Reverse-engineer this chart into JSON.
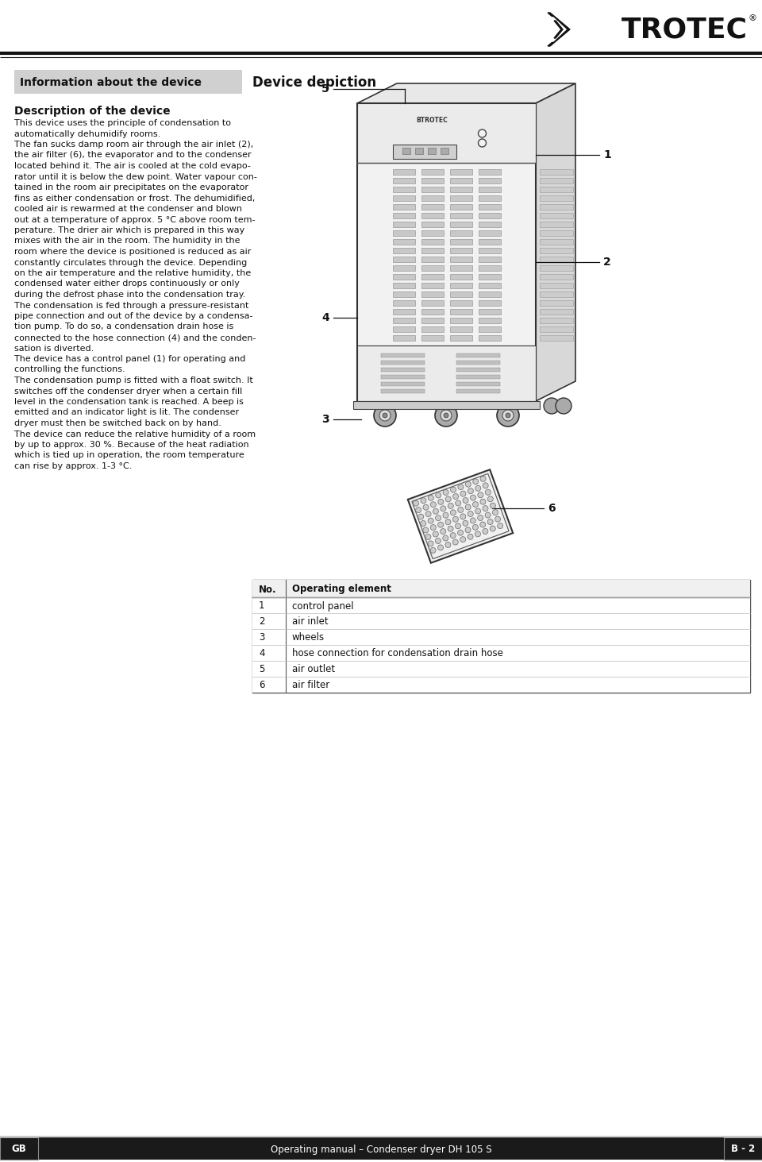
{
  "page_bg": "#ffffff",
  "info_box_bg": "#d0d0d0",
  "info_box_title": "Information about the device",
  "section_title": "Description of the device",
  "body_lines": [
    "This device uses the principle of condensation to",
    "automatically dehumidify rooms.",
    "The fan sucks damp room air through the air inlet (2),",
    "the air filter (6), the evaporator and to the condenser",
    "located behind it. The air is cooled at the cold evapo-",
    "rator until it is below the dew point. Water vapour con-",
    "tained in the room air precipitates on the evaporator",
    "fins as either condensation or frost. The dehumidified,",
    "cooled air is rewarmed at the condenser and blown",
    "out at a temperature of approx. 5 °C above room tem-",
    "perature. The drier air which is prepared in this way",
    "mixes with the air in the room. The humidity in the",
    "room where the device is positioned is reduced as air",
    "constantly circulates through the device. Depending",
    "on the air temperature and the relative humidity, the",
    "condensed water either drops continuously or only",
    "during the defrost phase into the condensation tray.",
    "The condensation is fed through a pressure-resistant",
    "pipe connection and out of the device by a condensa-",
    "tion pump. To do so, a condensation drain hose is",
    "connected to the hose connection (4) and the conden-",
    "sation is diverted.",
    "The device has a control panel (1) for operating and",
    "controlling the functions.",
    "The condensation pump is fitted with a float switch. It",
    "switches off the condenser dryer when a certain fill",
    "level in the condensation tank is reached. A beep is",
    "emitted and an indicator light is lit. The condenser",
    "dryer must then be switched back on by hand.",
    "The device can reduce the relative humidity of a room",
    "by up to approx. 30 %. Because of the heat radiation",
    "which is tied up in operation, the room temperature",
    "can rise by approx. 1-3 °C."
  ],
  "device_depiction_title": "Device depiction",
  "table_headers": [
    "No.",
    "Operating element"
  ],
  "table_rows": [
    [
      "1",
      "control panel"
    ],
    [
      "2",
      "air inlet"
    ],
    [
      "3",
      "wheels"
    ],
    [
      "4",
      "hose connection for condensation drain hose"
    ],
    [
      "5",
      "air outlet"
    ],
    [
      "6",
      "air filter"
    ]
  ],
  "footer_left": "GB",
  "footer_center": "Operating manual – Condenser dryer DH 105 S",
  "footer_right": "B - 2"
}
